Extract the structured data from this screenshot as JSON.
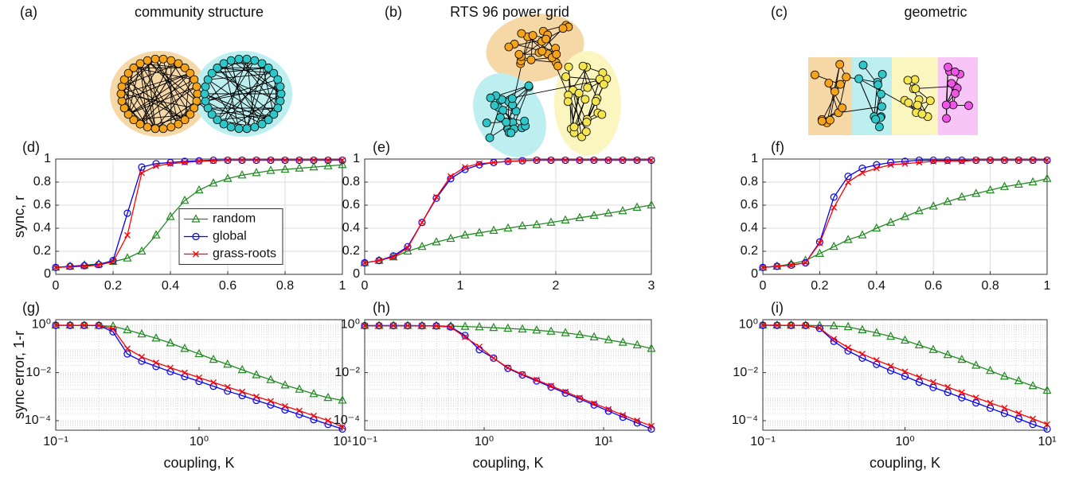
{
  "diagrams": [
    {
      "label": "(a)",
      "title": "community structure"
    },
    {
      "label": "(b)",
      "title": "RTS 96 power grid"
    },
    {
      "label": "(c)",
      "title": "geometric"
    }
  ],
  "chart_data": [
    {
      "type": "line",
      "panel_label": "(d)",
      "ylabel": "sync, r",
      "legend": "center right",
      "grid": true,
      "x": [
        0,
        0.05,
        0.1,
        0.15,
        0.2,
        0.25,
        0.3,
        0.35,
        0.4,
        0.45,
        0.5,
        0.55,
        0.6,
        0.65,
        0.7,
        0.75,
        0.8,
        0.85,
        0.9,
        0.95,
        1
      ],
      "xlim": [
        0,
        1
      ],
      "xticks": [
        0,
        0.2,
        0.4,
        0.6,
        0.8,
        1
      ],
      "ylim": [
        0,
        1
      ],
      "yticks": [
        0,
        0.2,
        0.4,
        0.6,
        0.8,
        1
      ],
      "series": [
        {
          "name": "random",
          "color": "#218a21",
          "marker": "triangle",
          "values": [
            0.06,
            0.07,
            0.08,
            0.09,
            0.11,
            0.14,
            0.2,
            0.34,
            0.5,
            0.64,
            0.73,
            0.79,
            0.83,
            0.86,
            0.88,
            0.9,
            0.91,
            0.92,
            0.93,
            0.94,
            0.95
          ]
        },
        {
          "name": "global",
          "color": "#0000ff",
          "marker": "circle",
          "values": [
            0.06,
            0.07,
            0.075,
            0.085,
            0.12,
            0.53,
            0.93,
            0.96,
            0.97,
            0.98,
            0.985,
            0.99,
            0.99,
            0.99,
            0.99,
            0.99,
            0.99,
            0.99,
            0.99,
            0.99,
            0.99
          ]
        },
        {
          "name": "grass-roots",
          "color": "#ff0000",
          "marker": "x",
          "values": [
            0.06,
            0.065,
            0.07,
            0.08,
            0.11,
            0.34,
            0.88,
            0.94,
            0.96,
            0.97,
            0.98,
            0.985,
            0.99,
            0.99,
            0.99,
            0.99,
            0.99,
            0.99,
            0.99,
            0.99,
            0.99
          ]
        }
      ]
    },
    {
      "type": "line",
      "panel_label": "(e)",
      "grid": true,
      "x": [
        0,
        0.15,
        0.3,
        0.45,
        0.6,
        0.75,
        0.9,
        1.05,
        1.2,
        1.35,
        1.5,
        1.65,
        1.8,
        1.95,
        2.1,
        2.25,
        2.4,
        2.55,
        2.7,
        2.85,
        3
      ],
      "xlim": [
        0,
        3
      ],
      "xticks": [
        0,
        1,
        2,
        3
      ],
      "ylim": [
        0,
        1
      ],
      "yticks": [
        0,
        0.2,
        0.4,
        0.6,
        0.8,
        1
      ],
      "series": [
        {
          "color": "#218a21",
          "marker": "triangle",
          "values": [
            0.1,
            0.12,
            0.15,
            0.2,
            0.24,
            0.28,
            0.31,
            0.34,
            0.36,
            0.38,
            0.4,
            0.42,
            0.43,
            0.45,
            0.47,
            0.49,
            0.51,
            0.53,
            0.55,
            0.58,
            0.6
          ]
        },
        {
          "color": "#0000ff",
          "marker": "circle",
          "values": [
            0.1,
            0.12,
            0.16,
            0.24,
            0.45,
            0.66,
            0.83,
            0.91,
            0.95,
            0.97,
            0.98,
            0.985,
            0.99,
            0.99,
            0.99,
            0.99,
            0.99,
            0.99,
            0.99,
            0.99,
            0.99
          ]
        },
        {
          "color": "#ff0000",
          "marker": "x",
          "values": [
            0.1,
            0.12,
            0.15,
            0.23,
            0.45,
            0.67,
            0.85,
            0.93,
            0.96,
            0.97,
            0.98,
            0.985,
            0.99,
            0.99,
            0.99,
            0.99,
            0.99,
            0.99,
            0.99,
            0.99,
            0.99
          ]
        }
      ]
    },
    {
      "type": "line",
      "panel_label": "(f)",
      "grid": true,
      "x": [
        0,
        0.05,
        0.1,
        0.15,
        0.2,
        0.25,
        0.3,
        0.35,
        0.4,
        0.45,
        0.5,
        0.55,
        0.6,
        0.65,
        0.7,
        0.75,
        0.8,
        0.85,
        0.9,
        0.95,
        1
      ],
      "xlim": [
        0,
        1
      ],
      "xticks": [
        0,
        0.2,
        0.4,
        0.6,
        0.8,
        1
      ],
      "ylim": [
        0,
        1
      ],
      "yticks": [
        0,
        0.2,
        0.4,
        0.6,
        0.8,
        1
      ],
      "series": [
        {
          "color": "#218a21",
          "marker": "triangle",
          "values": [
            0.06,
            0.07,
            0.09,
            0.12,
            0.18,
            0.24,
            0.3,
            0.34,
            0.4,
            0.45,
            0.5,
            0.55,
            0.59,
            0.63,
            0.67,
            0.7,
            0.73,
            0.76,
            0.78,
            0.8,
            0.83
          ]
        },
        {
          "color": "#0000ff",
          "marker": "circle",
          "values": [
            0.06,
            0.07,
            0.08,
            0.1,
            0.28,
            0.67,
            0.85,
            0.92,
            0.95,
            0.97,
            0.98,
            0.99,
            0.99,
            0.99,
            0.99,
            0.99,
            0.99,
            0.99,
            0.99,
            0.99,
            0.99
          ]
        },
        {
          "color": "#ff0000",
          "marker": "x",
          "values": [
            0.06,
            0.07,
            0.08,
            0.1,
            0.27,
            0.58,
            0.8,
            0.88,
            0.92,
            0.95,
            0.96,
            0.97,
            0.98,
            0.98,
            0.98,
            0.99,
            0.99,
            0.99,
            0.99,
            0.99,
            0.99
          ]
        }
      ]
    },
    {
      "type": "line",
      "panel_label": "(g)",
      "ylabel": "sync error, 1-r",
      "xlabel": "coupling, K",
      "xscale": "log",
      "yscale": "log",
      "grid": true,
      "x": [
        0.1,
        0.126,
        0.158,
        0.2,
        0.251,
        0.316,
        0.398,
        0.501,
        0.631,
        0.794,
        1,
        1.26,
        1.58,
        2,
        2.51,
        3.16,
        3.98,
        5.01,
        6.31,
        7.94,
        10
      ],
      "xlim": [
        0.1,
        10
      ],
      "xticks": [
        {
          "value": 0.1,
          "label": "10⁻¹"
        },
        {
          "value": 1,
          "label": "10⁰"
        },
        {
          "value": 10,
          "label": "10¹"
        }
      ],
      "ylim": [
        4e-05,
        1.6
      ],
      "yticks": [
        {
          "value": 0.0001,
          "label": "10⁻⁴"
        },
        {
          "value": 0.01,
          "label": "10⁻²"
        },
        {
          "value": 1,
          "label": "10⁰"
        }
      ],
      "series": [
        {
          "color": "#218a21",
          "marker": "triangle",
          "values": [
            0.93,
            0.93,
            0.92,
            0.9,
            0.85,
            0.6,
            0.4,
            0.27,
            0.17,
            0.1,
            0.06,
            0.035,
            0.022,
            0.013,
            0.008,
            0.005,
            0.003,
            0.002,
            0.0013,
            0.0009,
            0.0007
          ]
        },
        {
          "color": "#0000ff",
          "marker": "circle",
          "values": [
            0.94,
            0.93,
            0.93,
            0.92,
            0.5,
            0.06,
            0.03,
            0.018,
            0.011,
            0.0068,
            0.0043,
            0.0027,
            0.0017,
            0.0011,
            0.0007,
            0.00045,
            0.00028,
            0.00018,
            0.00011,
            7e-05,
            4.5e-05
          ]
        },
        {
          "color": "#ff0000",
          "marker": "x",
          "values": [
            0.94,
            0.93,
            0.93,
            0.92,
            0.66,
            0.1,
            0.045,
            0.026,
            0.016,
            0.01,
            0.0062,
            0.0039,
            0.0025,
            0.0016,
            0.001,
            0.00065,
            0.0004,
            0.00026,
            0.00016,
            0.0001,
            5.5e-05
          ]
        }
      ]
    },
    {
      "type": "line",
      "panel_label": "(h)",
      "xlabel": "coupling, K",
      "xscale": "log",
      "yscale": "log",
      "grid": true,
      "x": [
        0.1,
        0.132,
        0.174,
        0.229,
        0.302,
        0.398,
        0.525,
        0.692,
        0.912,
        1.2,
        1.58,
        2.09,
        2.75,
        3.63,
        4.79,
        6.31,
        8.32,
        11,
        14.5,
        19.1,
        25.1
      ],
      "xlim": [
        0.1,
        25.1
      ],
      "xticks": [
        {
          "value": 0.1,
          "label": "10⁻¹"
        },
        {
          "value": 1,
          "label": "10⁰"
        },
        {
          "value": 10,
          "label": "10¹"
        }
      ],
      "ylim": [
        4e-05,
        1.6
      ],
      "yticks": [
        {
          "value": 0.0001,
          "label": "10⁻⁴"
        },
        {
          "value": 0.01,
          "label": "10⁻²"
        },
        {
          "value": 1,
          "label": "10⁰"
        }
      ],
      "series": [
        {
          "color": "#218a21",
          "marker": "triangle",
          "values": [
            0.9,
            0.9,
            0.9,
            0.9,
            0.89,
            0.88,
            0.86,
            0.83,
            0.79,
            0.74,
            0.69,
            0.64,
            0.58,
            0.52,
            0.45,
            0.38,
            0.3,
            0.23,
            0.18,
            0.14,
            0.1
          ]
        },
        {
          "color": "#0000ff",
          "marker": "circle",
          "values": [
            0.9,
            0.9,
            0.9,
            0.9,
            0.89,
            0.88,
            0.8,
            0.35,
            0.09,
            0.04,
            0.015,
            0.008,
            0.0045,
            0.0025,
            0.0014,
            0.0008,
            0.00045,
            0.00025,
            0.00014,
            8e-05,
            4.5e-05
          ]
        },
        {
          "color": "#ff0000",
          "marker": "x",
          "values": [
            0.9,
            0.9,
            0.9,
            0.9,
            0.89,
            0.88,
            0.78,
            0.3,
            0.12,
            0.04,
            0.016,
            0.0085,
            0.005,
            0.0028,
            0.0016,
            0.0009,
            0.00052,
            0.0003,
            0.00017,
            0.0001,
            6e-05
          ]
        }
      ]
    },
    {
      "type": "line",
      "panel_label": "(i)",
      "xlabel": "coupling, K",
      "xscale": "log",
      "yscale": "log",
      "grid": true,
      "x": [
        0.1,
        0.126,
        0.158,
        0.2,
        0.251,
        0.316,
        0.398,
        0.501,
        0.631,
        0.794,
        1,
        1.26,
        1.58,
        2,
        2.51,
        3.16,
        3.98,
        5.01,
        6.31,
        7.94,
        10
      ],
      "xlim": [
        0.1,
        10
      ],
      "xticks": [
        {
          "value": 0.1,
          "label": "10⁻¹"
        },
        {
          "value": 1,
          "label": "10⁰"
        },
        {
          "value": 10,
          "label": "10¹"
        }
      ],
      "ylim": [
        4e-05,
        1.6
      ],
      "yticks": [
        {
          "value": 0.0001,
          "label": "10⁻⁴"
        },
        {
          "value": 0.01,
          "label": "10⁻²"
        },
        {
          "value": 1,
          "label": "10⁰"
        }
      ],
      "series": [
        {
          "color": "#218a21",
          "marker": "triangle",
          "values": [
            0.94,
            0.94,
            0.93,
            0.92,
            0.9,
            0.88,
            0.8,
            0.6,
            0.45,
            0.32,
            0.22,
            0.14,
            0.09,
            0.055,
            0.035,
            0.02,
            0.012,
            0.007,
            0.0045,
            0.0028,
            0.0018
          ]
        },
        {
          "color": "#0000ff",
          "marker": "circle",
          "values": [
            0.94,
            0.93,
            0.93,
            0.92,
            0.7,
            0.2,
            0.08,
            0.04,
            0.022,
            0.012,
            0.007,
            0.004,
            0.0024,
            0.0015,
            0.0009,
            0.00055,
            0.00033,
            0.0002,
            0.00012,
            7e-05,
            4.5e-05
          ]
        },
        {
          "color": "#ff0000",
          "marker": "x",
          "values": [
            0.94,
            0.93,
            0.93,
            0.92,
            0.72,
            0.25,
            0.11,
            0.06,
            0.033,
            0.019,
            0.011,
            0.0065,
            0.004,
            0.0025,
            0.0015,
            0.0009,
            0.00055,
            0.00034,
            0.0002,
            0.00012,
            7e-05
          ]
        }
      ]
    }
  ]
}
